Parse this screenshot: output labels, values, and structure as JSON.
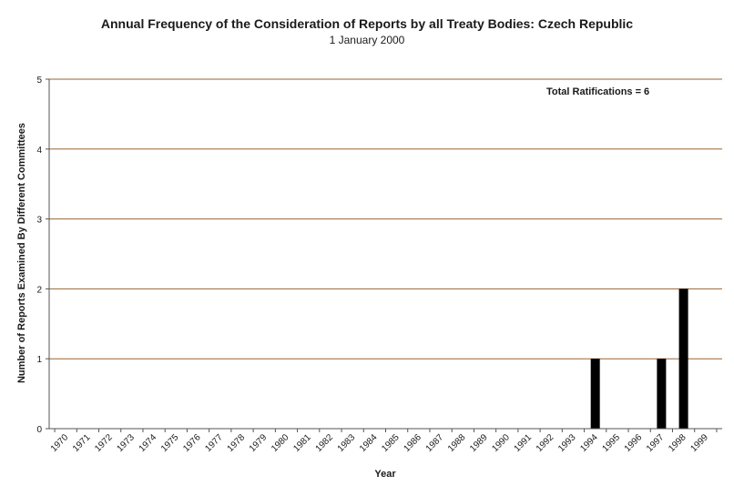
{
  "chart_data": {
    "type": "bar",
    "title": "Annual Frequency of the Consideration of Reports by all Treaty Bodies: Czech Republic",
    "subtitle": "1 January 2000",
    "xlabel": "Year",
    "ylabel": "Number of Reports Examined By Different Committees",
    "categories": [
      "1970",
      "1971",
      "1972",
      "1973",
      "1974",
      "1975",
      "1976",
      "1977",
      "1978",
      "1979",
      "1980",
      "1981",
      "1982",
      "1983",
      "1984",
      "1985",
      "1986",
      "1987",
      "1988",
      "1989",
      "1990",
      "1991",
      "1992",
      "1993",
      "1994",
      "1995",
      "1996",
      "1997",
      "1998",
      "1999"
    ],
    "values": [
      0,
      0,
      0,
      0,
      0,
      0,
      0,
      0,
      0,
      0,
      0,
      0,
      0,
      0,
      0,
      0,
      0,
      0,
      0,
      0,
      0,
      0,
      0,
      0,
      1,
      0,
      0,
      1,
      2,
      0
    ],
    "ylim": [
      0,
      5
    ],
    "yticks": [
      0,
      1,
      2,
      3,
      4,
      5
    ],
    "grid": true,
    "annotation": "Total Ratifications = 6",
    "colors": {
      "bar": "#000000",
      "grid": "#996633",
      "axis": "#555555"
    }
  }
}
